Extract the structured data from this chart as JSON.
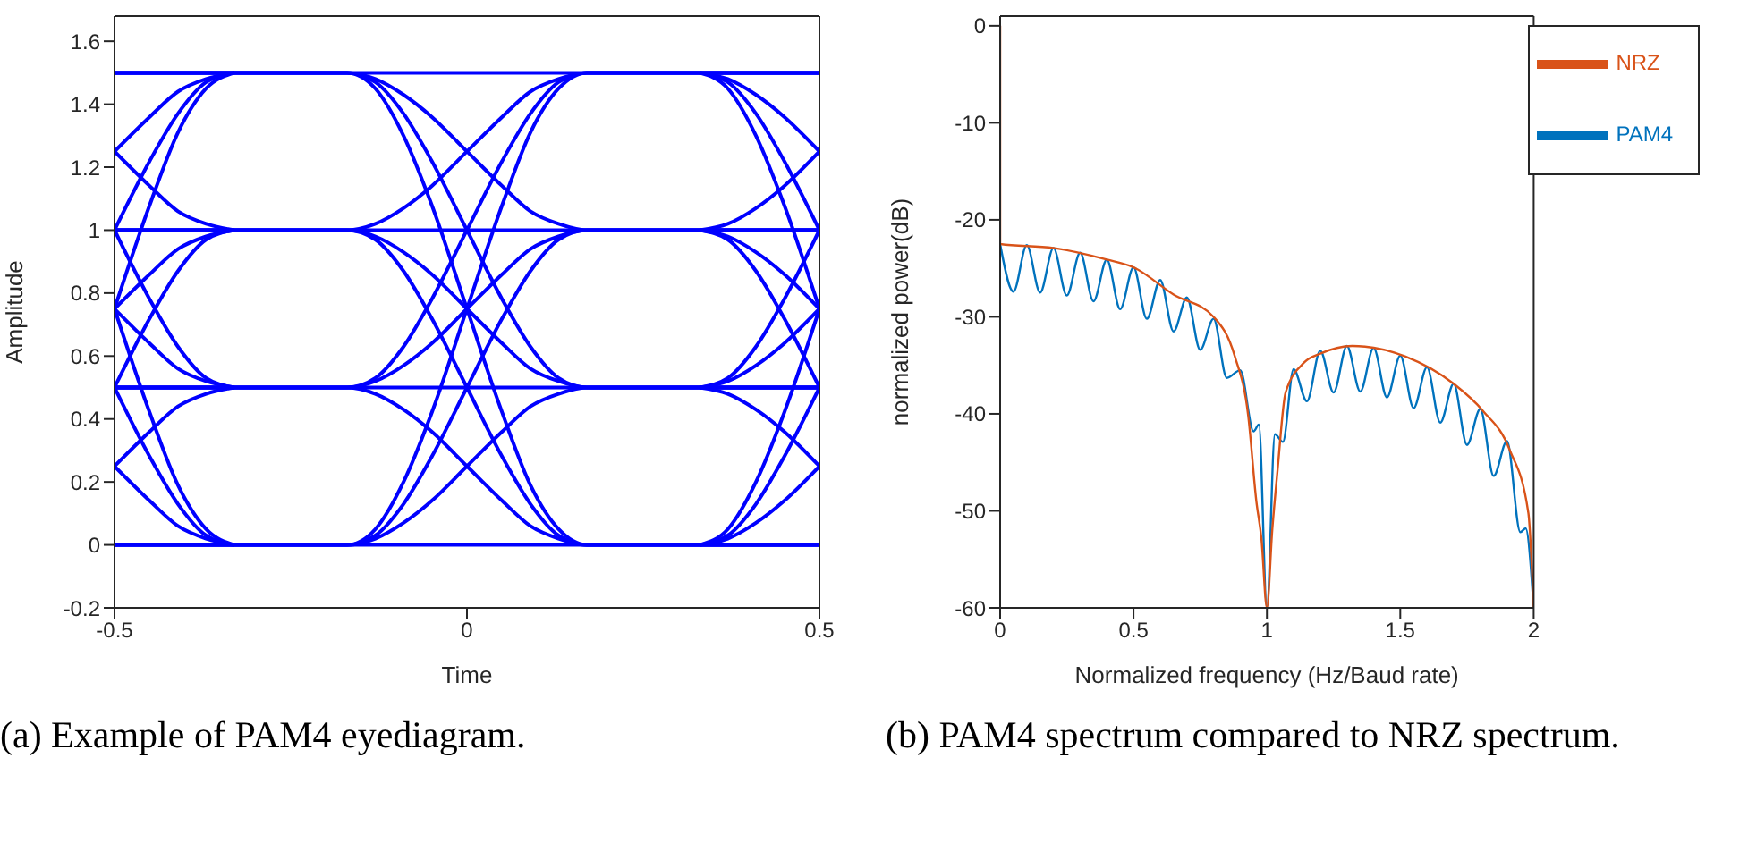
{
  "chart_data": [
    {
      "type": "line",
      "xlabel": "Time",
      "ylabel": "Amplitude",
      "color": "#0000ff",
      "xlim": [
        -0.5,
        0.5
      ],
      "xticks": [
        -0.5,
        0,
        0.5
      ],
      "ylim": [
        -0.2,
        1.68
      ],
      "yticks": [
        -0.2,
        0,
        0.2,
        0.4,
        0.6,
        0.8,
        1,
        1.2,
        1.4,
        1.6
      ],
      "annotations": [
        "(a) Example of PAM4 eyediagram."
      ],
      "series": [
        {
          "x": [
            -0.5,
            0.5
          ],
          "values": [
            0,
            0
          ]
        },
        {
          "x": [
            -0.5,
            0.5
          ],
          "values": [
            0.5,
            0.5
          ]
        },
        {
          "x": [
            -0.5,
            0.5
          ],
          "values": [
            1,
            1
          ]
        },
        {
          "x": [
            -0.5,
            0.5
          ],
          "values": [
            1.5,
            1.5
          ]
        },
        {
          "x": [
            -0.5,
            -0.17,
            -0.13,
            -0.09,
            -0.05,
            0,
            0.05,
            0.09,
            0.13,
            0.17,
            0.5
          ],
          "values": [
            0,
            0,
            0.02,
            0.07,
            0.14,
            0.25,
            0.36,
            0.44,
            0.48,
            0.5,
            0.5
          ]
        },
        {
          "x": [
            -0.5,
            -0.17,
            -0.13,
            -0.09,
            -0.05,
            0,
            0.05,
            0.09,
            0.13,
            0.17,
            0.5
          ],
          "values": [
            0.5,
            0.5,
            0.52,
            0.57,
            0.64,
            0.75,
            0.86,
            0.94,
            0.98,
            1,
            1
          ]
        },
        {
          "x": [
            -0.5,
            -0.17,
            -0.13,
            -0.09,
            -0.05,
            0,
            0.05,
            0.09,
            0.13,
            0.17,
            0.5
          ],
          "values": [
            1,
            1,
            1.02,
            1.07,
            1.14,
            1.25,
            1.36,
            1.44,
            1.48,
            1.5,
            1.5
          ]
        },
        {
          "x": [
            -0.5,
            -0.17,
            -0.13,
            -0.09,
            -0.05,
            0,
            0.05,
            0.09,
            0.13,
            0.17,
            0.5
          ],
          "values": [
            0,
            0,
            0.03,
            0.13,
            0.28,
            0.5,
            0.72,
            0.87,
            0.97,
            1,
            1
          ]
        },
        {
          "x": [
            -0.5,
            -0.17,
            -0.13,
            -0.09,
            -0.05,
            0,
            0.05,
            0.09,
            0.13,
            0.17,
            0.5
          ],
          "values": [
            0.5,
            0.5,
            0.53,
            0.63,
            0.78,
            1,
            1.22,
            1.37,
            1.47,
            1.5,
            1.5
          ]
        },
        {
          "x": [
            -0.5,
            -0.17,
            -0.13,
            -0.09,
            -0.05,
            0,
            0.05,
            0.09,
            0.13,
            0.17,
            0.5
          ],
          "values": [
            0,
            0,
            0.05,
            0.2,
            0.42,
            0.75,
            1.08,
            1.31,
            1.45,
            1.5,
            1.5
          ]
        },
        {
          "x": [
            -0.5,
            -0.17,
            -0.13,
            -0.09,
            -0.05,
            0,
            0.05,
            0.09,
            0.13,
            0.17,
            0.5
          ],
          "values": [
            0.5,
            0.5,
            0.48,
            0.43,
            0.36,
            0.25,
            0.14,
            0.06,
            0.02,
            0,
            0
          ]
        },
        {
          "x": [
            -0.5,
            -0.17,
            -0.13,
            -0.09,
            -0.05,
            0,
            0.05,
            0.09,
            0.13,
            0.17,
            0.5
          ],
          "values": [
            1,
            1,
            0.98,
            0.93,
            0.86,
            0.75,
            0.64,
            0.56,
            0.52,
            0.5,
            0.5
          ]
        },
        {
          "x": [
            -0.5,
            -0.17,
            -0.13,
            -0.09,
            -0.05,
            0,
            0.05,
            0.09,
            0.13,
            0.17,
            0.5
          ],
          "values": [
            1.5,
            1.5,
            1.48,
            1.43,
            1.36,
            1.25,
            1.14,
            1.06,
            1.02,
            1,
            1
          ]
        },
        {
          "x": [
            -0.5,
            -0.17,
            -0.13,
            -0.09,
            -0.05,
            0,
            0.05,
            0.09,
            0.13,
            0.17,
            0.5
          ],
          "values": [
            1,
            1,
            0.97,
            0.87,
            0.72,
            0.5,
            0.28,
            0.13,
            0.03,
            0,
            0
          ]
        },
        {
          "x": [
            -0.5,
            -0.17,
            -0.13,
            -0.09,
            -0.05,
            0,
            0.05,
            0.09,
            0.13,
            0.17,
            0.5
          ],
          "values": [
            1.5,
            1.5,
            1.47,
            1.37,
            1.22,
            1,
            0.78,
            0.63,
            0.53,
            0.5,
            0.5
          ]
        },
        {
          "x": [
            -0.5,
            -0.17,
            -0.13,
            -0.09,
            -0.05,
            0,
            0.05,
            0.09,
            0.13,
            0.17,
            0.5
          ],
          "values": [
            1.5,
            1.5,
            1.45,
            1.3,
            1.08,
            0.75,
            0.42,
            0.19,
            0.05,
            0,
            0
          ]
        },
        {
          "x": [
            -0.5,
            -0.45,
            -0.41,
            -0.37,
            -0.33
          ],
          "values": [
            0.25,
            0.36,
            0.44,
            0.48,
            0.5
          ]
        },
        {
          "x": [
            -0.5,
            -0.45,
            -0.41,
            -0.37,
            -0.33
          ],
          "values": [
            0.75,
            0.86,
            0.94,
            0.98,
            1
          ]
        },
        {
          "x": [
            -0.5,
            -0.45,
            -0.41,
            -0.37,
            -0.33
          ],
          "values": [
            1.25,
            1.36,
            1.44,
            1.48,
            1.5
          ]
        },
        {
          "x": [
            -0.5,
            -0.45,
            -0.41,
            -0.37,
            -0.33
          ],
          "values": [
            0.5,
            0.72,
            0.87,
            0.97,
            1
          ]
        },
        {
          "x": [
            -0.5,
            -0.45,
            -0.41,
            -0.37,
            -0.33
          ],
          "values": [
            1,
            1.22,
            1.37,
            1.47,
            1.5
          ]
        },
        {
          "x": [
            -0.5,
            -0.45,
            -0.41,
            -0.37,
            -0.33
          ],
          "values": [
            0.75,
            1.08,
            1.31,
            1.45,
            1.5
          ]
        },
        {
          "x": [
            -0.5,
            -0.45,
            -0.41,
            -0.37,
            -0.33
          ],
          "values": [
            0.25,
            0.14,
            0.06,
            0.02,
            0
          ]
        },
        {
          "x": [
            -0.5,
            -0.45,
            -0.41,
            -0.37,
            -0.33
          ],
          "values": [
            0.75,
            0.64,
            0.56,
            0.52,
            0.5
          ]
        },
        {
          "x": [
            -0.5,
            -0.45,
            -0.41,
            -0.37,
            -0.33
          ],
          "values": [
            1.25,
            1.14,
            1.06,
            1.02,
            1
          ]
        },
        {
          "x": [
            -0.5,
            -0.45,
            -0.41,
            -0.37,
            -0.33
          ],
          "values": [
            0.5,
            0.28,
            0.13,
            0.03,
            0
          ]
        },
        {
          "x": [
            -0.5,
            -0.45,
            -0.41,
            -0.37,
            -0.33
          ],
          "values": [
            1,
            0.78,
            0.63,
            0.53,
            0.5
          ]
        },
        {
          "x": [
            -0.5,
            -0.45,
            -0.41,
            -0.37,
            -0.33
          ],
          "values": [
            0.75,
            0.42,
            0.19,
            0.05,
            0
          ]
        },
        {
          "x": [
            0.33,
            0.37,
            0.41,
            0.45,
            0.5
          ],
          "values": [
            0,
            0.02,
            0.07,
            0.14,
            0.25
          ]
        },
        {
          "x": [
            0.33,
            0.37,
            0.41,
            0.45,
            0.5
          ],
          "values": [
            0.5,
            0.52,
            0.57,
            0.64,
            0.75
          ]
        },
        {
          "x": [
            0.33,
            0.37,
            0.41,
            0.45,
            0.5
          ],
          "values": [
            1,
            1.02,
            1.07,
            1.14,
            1.25
          ]
        },
        {
          "x": [
            0.33,
            0.37,
            0.41,
            0.45,
            0.5
          ],
          "values": [
            0,
            0.03,
            0.13,
            0.28,
            0.5
          ]
        },
        {
          "x": [
            0.33,
            0.37,
            0.41,
            0.45,
            0.5
          ],
          "values": [
            0.5,
            0.53,
            0.63,
            0.78,
            1
          ]
        },
        {
          "x": [
            0.33,
            0.37,
            0.41,
            0.45,
            0.5
          ],
          "values": [
            0,
            0.05,
            0.2,
            0.42,
            0.75
          ]
        },
        {
          "x": [
            0.33,
            0.37,
            0.41,
            0.45,
            0.5
          ],
          "values": [
            0.5,
            0.48,
            0.43,
            0.36,
            0.25
          ]
        },
        {
          "x": [
            0.33,
            0.37,
            0.41,
            0.45,
            0.5
          ],
          "values": [
            1,
            0.98,
            0.93,
            0.86,
            0.75
          ]
        },
        {
          "x": [
            0.33,
            0.37,
            0.41,
            0.45,
            0.5
          ],
          "values": [
            1.5,
            1.48,
            1.43,
            1.36,
            1.25
          ]
        },
        {
          "x": [
            0.33,
            0.37,
            0.41,
            0.45,
            0.5
          ],
          "values": [
            1,
            0.97,
            0.87,
            0.72,
            0.5
          ]
        },
        {
          "x": [
            0.33,
            0.37,
            0.41,
            0.45,
            0.5
          ],
          "values": [
            1.5,
            1.47,
            1.37,
            1.22,
            1
          ]
        },
        {
          "x": [
            0.33,
            0.37,
            0.41,
            0.45,
            0.5
          ],
          "values": [
            1.5,
            1.45,
            1.3,
            1.08,
            0.75
          ]
        }
      ]
    },
    {
      "type": "line",
      "xlabel": "Normalized frequency (Hz/Baud rate)",
      "ylabel": "normalized power(dB)",
      "xlim": [
        0,
        2
      ],
      "xticks": [
        0,
        0.5,
        1,
        1.5,
        2
      ],
      "ylim": [
        -60,
        1
      ],
      "yticks": [
        -60,
        -50,
        -40,
        -30,
        -20,
        -10,
        0
      ],
      "legend": "top right",
      "annotations": [
        "(b) PAM4 spectrum compared to NRZ spectrum."
      ],
      "series": [
        {
          "name": "PAM4",
          "color": "#0072bd",
          "x": [
            0,
            0.05,
            0.1,
            0.15,
            0.2,
            0.25,
            0.3,
            0.35,
            0.4,
            0.45,
            0.5,
            0.55,
            0.6,
            0.65,
            0.7,
            0.75,
            0.8,
            0.85,
            0.9,
            0.95,
            0.97,
            1,
            1.03,
            1.06,
            1.1,
            1.15,
            1.2,
            1.25,
            1.3,
            1.35,
            1.4,
            1.45,
            1.5,
            1.55,
            1.6,
            1.65,
            1.7,
            1.75,
            1.8,
            1.85,
            1.9,
            1.95,
            1.97,
            2
          ],
          "values": [
            -22.5,
            -27.4,
            -22.6,
            -27.5,
            -22.9,
            -27.8,
            -23.4,
            -28.4,
            -24.1,
            -29.2,
            -24.9,
            -30.2,
            -26.2,
            -31.5,
            -28,
            -33.4,
            -30.2,
            -36.3,
            -35.5,
            -41.8,
            -41.1,
            -60,
            -42.1,
            -42.9,
            -35.4,
            -38.7,
            -33.5,
            -37.8,
            -33,
            -37.7,
            -33.2,
            -38.3,
            -34,
            -39.4,
            -35.2,
            -40.9,
            -36.9,
            -43.2,
            -39.5,
            -46.4,
            -42.8,
            -52.2,
            -51.8,
            -60
          ]
        },
        {
          "name": "NRZ",
          "color": "#d95319",
          "x": [
            0,
            0,
            0.2,
            0.4,
            0.5,
            0.65,
            0.8,
            0.88,
            0.93,
            0.96,
            0.98,
            1,
            1.02,
            1.04,
            1.07,
            1.14,
            1.2,
            1.32,
            1.52,
            1.7,
            1.81,
            1.91,
            1.98,
            2
          ],
          "values": [
            0,
            -22.5,
            -22.9,
            -24.1,
            -24.9,
            -27.7,
            -30,
            -34.1,
            -40.2,
            -48.9,
            -53,
            -60,
            -52,
            -45.8,
            -37.8,
            -34.7,
            -33.8,
            -33,
            -34.1,
            -36.9,
            -39.7,
            -43.7,
            -50.2,
            -60
          ]
        }
      ]
    }
  ]
}
